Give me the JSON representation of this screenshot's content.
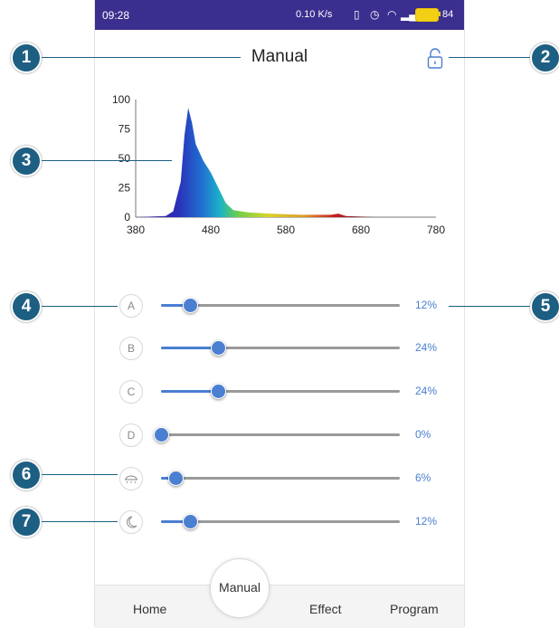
{
  "status_bar": {
    "time": "09:28",
    "net_speed": "0.10 K/s",
    "battery": "84",
    "icons": [
      "vibrate-icon",
      "alarm-icon",
      "wifi-icon",
      "signal-icon",
      "battery-icon"
    ]
  },
  "header": {
    "title": "Manual",
    "lock_icon": "unlock-icon"
  },
  "chart_data": {
    "type": "area",
    "title": "",
    "xlabel": "",
    "ylabel": "",
    "x_ticks": [
      "380",
      "480",
      "580",
      "680",
      "780"
    ],
    "y_ticks": [
      "100",
      "75",
      "50",
      "25",
      "0"
    ],
    "xlim": [
      380,
      780
    ],
    "ylim": [
      0,
      100
    ],
    "x": [
      380,
      420,
      430,
      440,
      445,
      450,
      455,
      460,
      470,
      480,
      490,
      500,
      510,
      530,
      560,
      600,
      640,
      650,
      660,
      700,
      780
    ],
    "values": [
      0,
      1,
      5,
      30,
      70,
      93,
      80,
      62,
      48,
      38,
      25,
      12,
      6,
      4,
      3,
      2,
      2,
      3,
      1,
      0,
      0
    ],
    "grid": false
  },
  "channels": [
    {
      "label": "A",
      "value": 12,
      "value_text": "12%"
    },
    {
      "label": "B",
      "value": 24,
      "value_text": "24%"
    },
    {
      "label": "C",
      "value": 24,
      "value_text": "24%"
    },
    {
      "label": "D",
      "value": 0,
      "value_text": "0%"
    },
    {
      "label": "",
      "value": 6,
      "value_text": "6%",
      "icon": "sunrise-icon"
    },
    {
      "label": "",
      "value": 12,
      "value_text": "12%",
      "icon": "moon-icon"
    }
  ],
  "nav": {
    "home": "Home",
    "manual": "Manual",
    "effect": "Effect",
    "program": "Program"
  },
  "callouts": [
    "1",
    "2",
    "3",
    "4",
    "5",
    "6",
    "7"
  ],
  "colors": {
    "accent": "#4a7fd1",
    "status_bar": "#3a2f8f",
    "callout": "#1d5f82"
  }
}
